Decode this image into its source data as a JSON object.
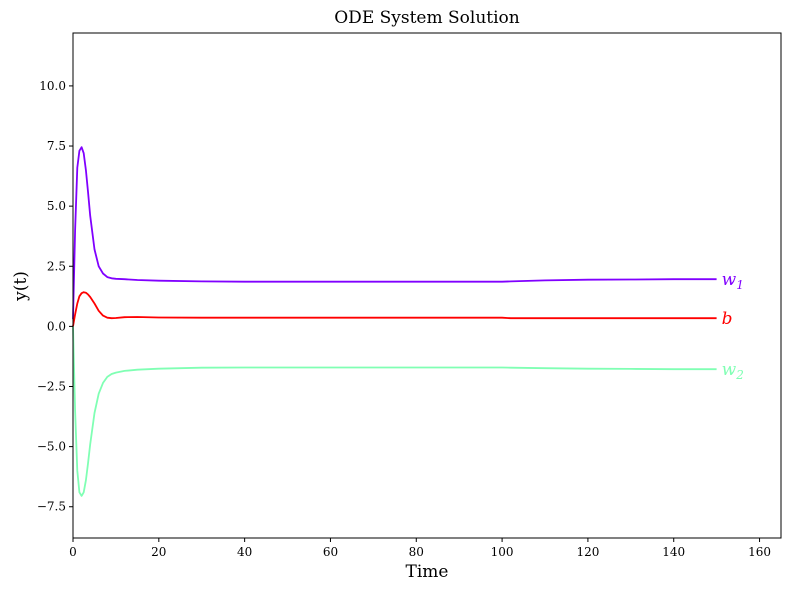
{
  "chart_data": {
    "type": "line",
    "title": "ODE System Solution",
    "xlabel": "Time",
    "ylabel": "y(t)",
    "xlim": [
      0,
      165
    ],
    "ylim": [
      -8.8,
      12.2
    ],
    "x_ticks": [
      0,
      20,
      40,
      60,
      80,
      100,
      120,
      140,
      160
    ],
    "x_tick_labels": [
      "0",
      "20",
      "40",
      "60",
      "80",
      "100",
      "120",
      "140",
      "160"
    ],
    "y_ticks": [
      -7.5,
      -5.0,
      -2.5,
      0.0,
      2.5,
      5.0,
      7.5,
      10.0
    ],
    "y_tick_labels": [
      "−7.5",
      "−5.0",
      "−2.5",
      "0.0",
      "2.5",
      "5.0",
      "7.5",
      "10.0"
    ],
    "grid": false,
    "legend": "inline labels at line ends",
    "series": [
      {
        "name": "w1",
        "label_main": "w",
        "label_sub": "1",
        "color": "#8000ff",
        "x": [
          0,
          0.5,
          1,
          1.5,
          2,
          2.5,
          3,
          3.5,
          4,
          5,
          6,
          7,
          8,
          9,
          10,
          12,
          15,
          20,
          30,
          40,
          60,
          80,
          100,
          102,
          110,
          120,
          130,
          140,
          150
        ],
        "y": [
          0.3,
          4.0,
          6.6,
          7.3,
          7.45,
          7.2,
          6.5,
          5.6,
          4.6,
          3.2,
          2.5,
          2.2,
          2.05,
          2.0,
          1.98,
          1.96,
          1.93,
          1.9,
          1.87,
          1.86,
          1.86,
          1.86,
          1.86,
          1.87,
          1.91,
          1.94,
          1.95,
          1.96,
          1.96
        ]
      },
      {
        "name": "b",
        "label_main": "b",
        "label_sub": "",
        "color": "#ff0000",
        "x": [
          0,
          0.5,
          1,
          1.5,
          2,
          2.5,
          3,
          3.5,
          4,
          5,
          6,
          7,
          8,
          9,
          10,
          12,
          15,
          20,
          30,
          40,
          60,
          80,
          100,
          102,
          110,
          120,
          130,
          140,
          150
        ],
        "y": [
          0.0,
          0.5,
          0.95,
          1.25,
          1.38,
          1.42,
          1.4,
          1.33,
          1.22,
          0.95,
          0.65,
          0.45,
          0.36,
          0.34,
          0.35,
          0.38,
          0.39,
          0.37,
          0.36,
          0.36,
          0.36,
          0.36,
          0.36,
          0.34,
          0.34,
          0.34,
          0.34,
          0.34,
          0.34
        ]
      },
      {
        "name": "w2",
        "label_main": "w",
        "label_sub": "2",
        "color": "#80ffb4",
        "x": [
          0,
          0.5,
          1,
          1.5,
          2,
          2.5,
          3,
          3.5,
          4,
          5,
          6,
          7,
          8,
          9,
          10,
          12,
          15,
          20,
          30,
          40,
          60,
          80,
          100,
          102,
          110,
          120,
          130,
          140,
          150
        ],
        "y": [
          0.0,
          -3.5,
          -6.0,
          -6.9,
          -7.05,
          -6.9,
          -6.4,
          -5.7,
          -4.9,
          -3.6,
          -2.8,
          -2.35,
          -2.1,
          -1.98,
          -1.92,
          -1.85,
          -1.8,
          -1.76,
          -1.72,
          -1.71,
          -1.71,
          -1.71,
          -1.71,
          -1.72,
          -1.74,
          -1.76,
          -1.77,
          -1.78,
          -1.78
        ]
      }
    ]
  }
}
